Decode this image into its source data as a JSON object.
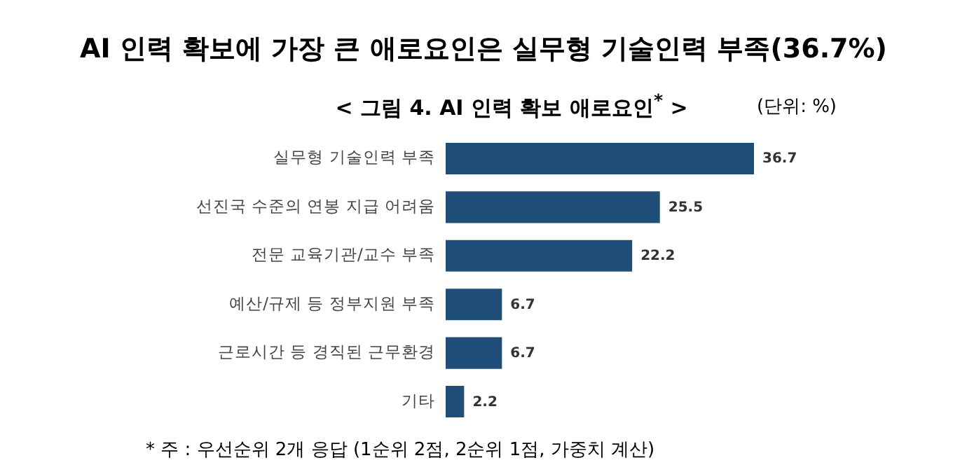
{
  "chart_data": {
    "type": "bar",
    "orientation": "horizontal",
    "title": "AI 인력 확보에 가장 큰 애로요인은 실무형 기술인력 부족(36.7%)",
    "subtitle": "< 그림 4. AI 인력 확보 애로요인$^{*}$ >",
    "categories": [
      "실무형 기술인력 부족",
      "선진국 수준의 연봉 지급 어려움",
      "전문 교육기관/교수 부족",
      "예산/규제 등 정부지원 부족",
      "근로시간 등 경직된 근무환경",
      "기타"
    ],
    "values": [
      36.7,
      25.5,
      22.2,
      6.7,
      6.7,
      2.2
    ],
    "color": "#1f4e79",
    "data_labels": true,
    "tick_labels": "y",
    "annotations": [
      "(단위: %)",
      "* 주 : 우선순위 2개 응답 (1순위 2점, 2순위 1점, 가중치 계산)"
    ]
  }
}
